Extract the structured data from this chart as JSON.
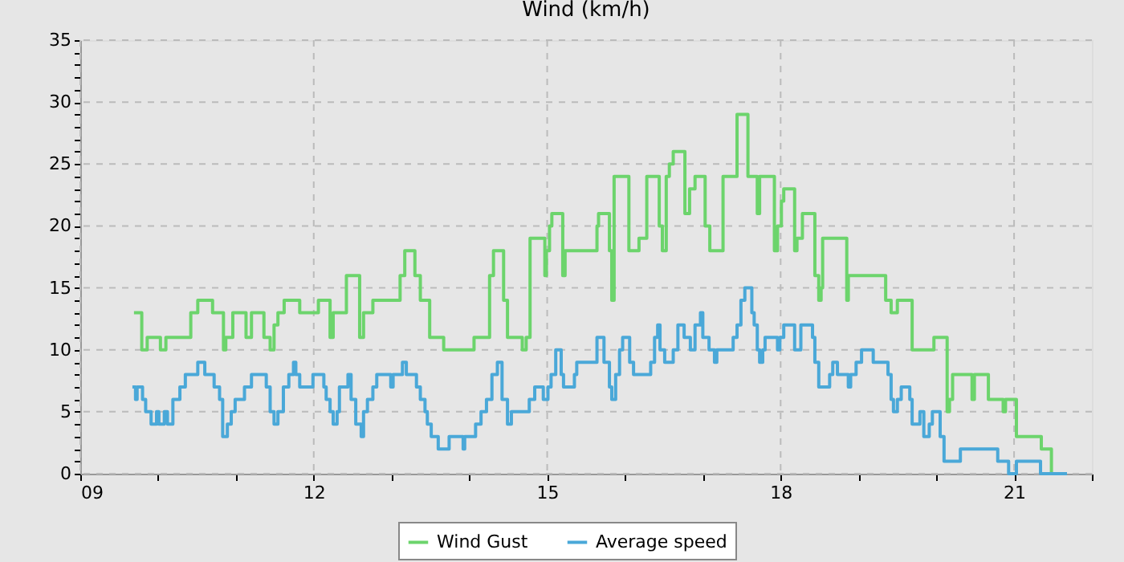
{
  "chart_data": {
    "type": "step",
    "title": "Wind (km/h)",
    "xlim": [
      9,
      22
    ],
    "xticks": [
      {
        "value": 9,
        "label": "09"
      },
      {
        "value": 10,
        "label": null
      },
      {
        "value": 11,
        "label": null
      },
      {
        "value": 12,
        "label": "12"
      },
      {
        "value": 13,
        "label": null
      },
      {
        "value": 14,
        "label": null
      },
      {
        "value": 15,
        "label": "15"
      },
      {
        "value": 16,
        "label": null
      },
      {
        "value": 17,
        "label": null
      },
      {
        "value": 18,
        "label": "18"
      },
      {
        "value": 19,
        "label": null
      },
      {
        "value": 20,
        "label": null
      },
      {
        "value": 21,
        "label": "21"
      },
      {
        "value": 22,
        "label": null
      }
    ],
    "ylim": [
      0,
      35
    ],
    "yticks": [
      0,
      {
        "value": 1,
        "label": null
      },
      {
        "value": 2,
        "label": null
      },
      {
        "value": 3,
        "label": null
      },
      {
        "value": 4,
        "label": null
      },
      5,
      {
        "value": 6,
        "label": null
      },
      {
        "value": 7,
        "label": null
      },
      {
        "value": 8,
        "label": null
      },
      {
        "value": 9,
        "label": null
      },
      10,
      {
        "value": 11,
        "label": null
      },
      {
        "value": 12,
        "label": null
      },
      {
        "value": 13,
        "label": null
      },
      {
        "value": 14,
        "label": null
      },
      15,
      {
        "value": 16,
        "label": null
      },
      {
        "value": 17,
        "label": null
      },
      {
        "value": 18,
        "label": null
      },
      {
        "value": 19,
        "label": null
      },
      20,
      {
        "value": 21,
        "label": null
      },
      {
        "value": 22,
        "label": null
      },
      {
        "value": 23,
        "label": null
      },
      {
        "value": 24,
        "label": null
      },
      25,
      {
        "value": 26,
        "label": null
      },
      {
        "value": 27,
        "label": null
      },
      {
        "value": 28,
        "label": null
      },
      {
        "value": 29,
        "label": null
      },
      30,
      {
        "value": 31,
        "label": null
      },
      {
        "value": 32,
        "label": null
      },
      {
        "value": 33,
        "label": null
      },
      {
        "value": 34,
        "label": null
      },
      35
    ],
    "grid": true,
    "legend": "bottom",
    "line_style": "solid",
    "marker": "none",
    "series": [
      {
        "name": "Wind Gust",
        "color": "#6cd46c",
        "x": [
          9.69,
          9.79,
          9.86,
          10.03,
          10.1,
          10.42,
          10.51,
          10.7,
          10.84,
          10.87,
          10.96,
          11.13,
          11.2,
          11.36,
          11.44,
          11.49,
          11.54,
          11.62,
          11.82,
          12.06,
          12.21,
          12.25,
          12.42,
          12.59,
          12.64,
          12.76,
          13.11,
          13.17,
          13.3,
          13.37,
          13.49,
          13.67,
          14.06,
          14.26,
          14.31,
          14.44,
          14.49,
          14.68,
          14.73,
          14.78,
          14.97,
          14.99,
          15.03,
          15.06,
          15.2,
          15.23,
          15.64,
          15.66,
          15.8,
          15.83,
          15.86,
          16.05,
          16.18,
          16.28,
          16.44,
          16.48,
          16.53,
          16.57,
          16.62,
          16.77,
          16.83,
          16.9,
          17.03,
          17.09,
          17.26,
          17.44,
          17.58,
          17.7,
          17.73,
          17.92,
          17.96,
          18.01,
          18.04,
          18.18,
          18.21,
          18.28,
          18.44,
          18.49,
          18.52,
          18.54,
          18.85,
          18.87,
          19.35,
          19.42,
          19.5,
          19.69,
          19.97,
          20.14,
          20.17,
          20.21,
          20.46,
          20.49,
          20.67,
          20.86,
          20.89,
          21.03,
          21.35,
          21.48,
          21.51
        ],
        "values": [
          13,
          10,
          11,
          10,
          11,
          13,
          14,
          13,
          10,
          11,
          13,
          11,
          13,
          11,
          10,
          12,
          13,
          14,
          13,
          14,
          11,
          13,
          16,
          11,
          13,
          14,
          16,
          18,
          16,
          14,
          11,
          10,
          11,
          16,
          18,
          14,
          11,
          10,
          11,
          19,
          16,
          18,
          20,
          21,
          16,
          18,
          20,
          21,
          18,
          14,
          24,
          18,
          19,
          24,
          20,
          18,
          24,
          25,
          26,
          21,
          23,
          24,
          20,
          18,
          24,
          29,
          24,
          21,
          24,
          18,
          20,
          22,
          23,
          18,
          19,
          21,
          16,
          14,
          15,
          19,
          14,
          16,
          14,
          13,
          14,
          10,
          11,
          5,
          6,
          8,
          6,
          8,
          6,
          5,
          6,
          3,
          2,
          0,
          0
        ]
      },
      {
        "name": "Average speed",
        "color": "#4aa8d8",
        "x": [
          9.67,
          9.71,
          9.73,
          9.8,
          9.84,
          9.91,
          9.98,
          10.01,
          10.08,
          10.12,
          10.19,
          10.28,
          10.35,
          10.51,
          10.6,
          10.72,
          10.79,
          10.83,
          10.89,
          10.94,
          10.99,
          11.11,
          11.2,
          11.39,
          11.44,
          11.49,
          11.54,
          11.61,
          11.68,
          11.74,
          11.77,
          11.82,
          11.99,
          12.13,
          12.16,
          12.21,
          12.25,
          12.3,
          12.33,
          12.44,
          12.48,
          12.54,
          12.61,
          12.64,
          12.69,
          12.76,
          12.81,
          12.99,
          13.02,
          13.14,
          13.19,
          13.32,
          13.37,
          13.43,
          13.46,
          13.51,
          13.6,
          13.74,
          13.92,
          13.94,
          14.08,
          14.15,
          14.22,
          14.29,
          14.36,
          14.42,
          14.49,
          14.54,
          14.77,
          14.84,
          14.95,
          15.01,
          15.05,
          15.11,
          15.18,
          15.21,
          15.35,
          15.38,
          15.64,
          15.73,
          15.8,
          15.83,
          15.88,
          15.93,
          15.97,
          16.06,
          16.11,
          16.33,
          16.38,
          16.42,
          16.45,
          16.51,
          16.62,
          16.68,
          16.76,
          16.84,
          16.9,
          16.97,
          17.0,
          17.08,
          17.15,
          17.18,
          17.39,
          17.44,
          17.49,
          17.54,
          17.63,
          17.66,
          17.7,
          17.73,
          17.77,
          17.8,
          17.96,
          17.99,
          18.04,
          18.18,
          18.26,
          18.41,
          18.44,
          18.49,
          18.63,
          18.67,
          18.73,
          18.87,
          18.9,
          18.97,
          19.04,
          19.19,
          19.38,
          19.42,
          19.45,
          19.5,
          19.55,
          19.66,
          19.69,
          19.79,
          19.84,
          19.91,
          19.95,
          20.05,
          20.1,
          20.31,
          20.79,
          20.93,
          21.03,
          21.34,
          21.68
        ],
        "values": [
          7,
          6,
          7,
          6,
          5,
          4,
          5,
          4,
          5,
          4,
          6,
          7,
          8,
          9,
          8,
          7,
          6,
          3,
          4,
          5,
          6,
          7,
          8,
          7,
          5,
          4,
          5,
          7,
          8,
          9,
          8,
          7,
          8,
          7,
          6,
          5,
          4,
          5,
          7,
          8,
          6,
          4,
          3,
          5,
          6,
          7,
          8,
          7,
          8,
          9,
          8,
          7,
          6,
          5,
          4,
          3,
          2,
          3,
          2,
          3,
          4,
          5,
          6,
          8,
          9,
          6,
          4,
          5,
          6,
          7,
          6,
          7,
          8,
          10,
          8,
          7,
          8,
          9,
          11,
          9,
          7,
          6,
          8,
          10,
          11,
          9,
          8,
          9,
          11,
          12,
          10,
          9,
          10,
          12,
          11,
          10,
          12,
          13,
          11,
          10,
          9,
          10,
          11,
          12,
          14,
          15,
          13,
          12,
          10,
          9,
          10,
          11,
          10,
          11,
          12,
          10,
          12,
          11,
          9,
          7,
          8,
          9,
          8,
          7,
          8,
          9,
          10,
          9,
          8,
          6,
          5,
          6,
          7,
          6,
          4,
          5,
          3,
          4,
          5,
          3,
          1,
          2,
          1,
          0,
          1,
          0,
          0
        ]
      }
    ]
  }
}
